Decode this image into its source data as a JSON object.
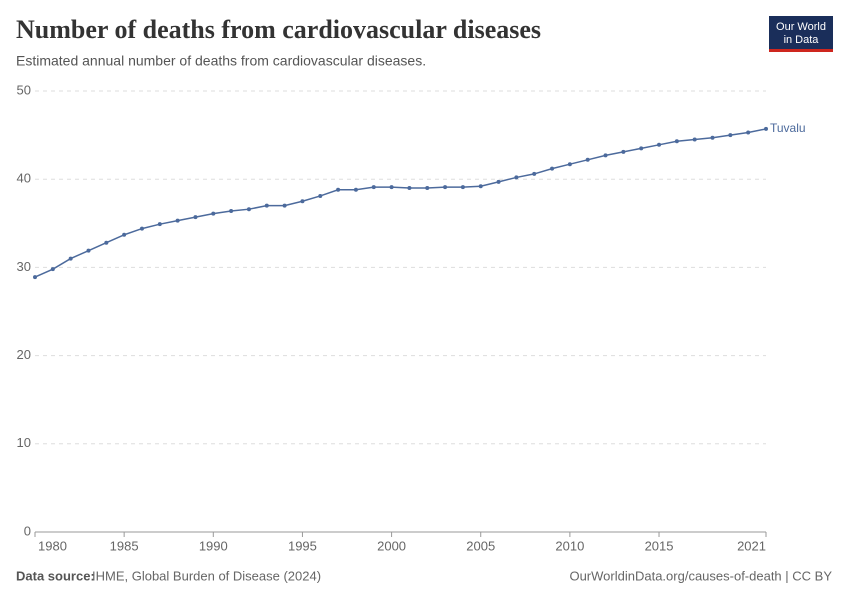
{
  "chart_data": {
    "type": "line",
    "title": "Number of deaths from cardiovascular diseases",
    "subtitle": "Estimated annual number of deaths from cardiovascular diseases.",
    "logo": [
      "Our World",
      "in Data"
    ],
    "source_label": "Data source:",
    "source": "IHME, Global Burden of Disease (2024)",
    "url": "OurWorldinData.org/causes-of-death | CC BY",
    "x": [
      1980,
      1981,
      1982,
      1983,
      1984,
      1985,
      1986,
      1987,
      1988,
      1989,
      1990,
      1991,
      1992,
      1993,
      1994,
      1995,
      1996,
      1997,
      1998,
      1999,
      2000,
      2001,
      2002,
      2003,
      2004,
      2005,
      2006,
      2007,
      2008,
      2009,
      2010,
      2011,
      2012,
      2013,
      2014,
      2015,
      2016,
      2017,
      2018,
      2019,
      2020,
      2021
    ],
    "series": [
      {
        "name": "Tuvalu",
        "color": "#4c6a9c",
        "values": [
          28.9,
          29.8,
          31.0,
          31.9,
          32.8,
          33.7,
          34.4,
          34.9,
          35.3,
          35.7,
          36.1,
          36.4,
          36.6,
          37.0,
          37.0,
          37.5,
          38.1,
          38.8,
          38.8,
          39.1,
          39.1,
          39.0,
          39.0,
          39.1,
          39.1,
          39.2,
          39.7,
          40.2,
          40.6,
          41.2,
          41.7,
          42.2,
          42.7,
          43.1,
          43.5,
          43.9,
          44.3,
          44.5,
          44.7,
          45.0,
          45.3,
          45.7
        ]
      }
    ],
    "xlim": [
      1980,
      2021
    ],
    "xticks": [
      1980,
      1985,
      1990,
      1995,
      2000,
      2005,
      2010,
      2015,
      2021
    ],
    "ylim": [
      0,
      50
    ],
    "yticks": [
      0,
      10,
      20,
      30,
      40,
      50
    ],
    "grid": true
  }
}
